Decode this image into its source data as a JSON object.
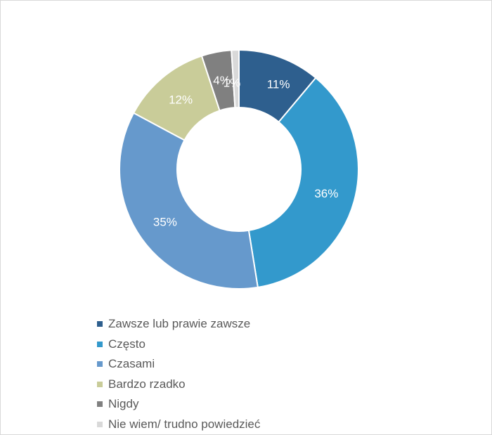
{
  "chart_data": {
    "type": "pie",
    "subtype": "donut",
    "categories": [
      "Zawsze lub prawie zawsze",
      "Często",
      "Czasami",
      "Bardzo rzadko",
      "Nigdy",
      "Nie wiem/ trudno powiedzieć"
    ],
    "values": [
      11,
      36,
      35,
      12,
      4,
      1
    ],
    "data_labels": [
      "11%",
      "36%",
      "35%",
      "12%",
      "4%",
      "1%"
    ],
    "colors": [
      "#2E5F8E",
      "#3399CC",
      "#6699CC",
      "#C9CC99",
      "#808080",
      "#D9D9D9"
    ],
    "label_colors": [
      "#ffffff",
      "#ffffff",
      "#ffffff",
      "#ffffff",
      "#ffffff",
      "#ffffff"
    ],
    "legend_position": "bottom-left"
  }
}
